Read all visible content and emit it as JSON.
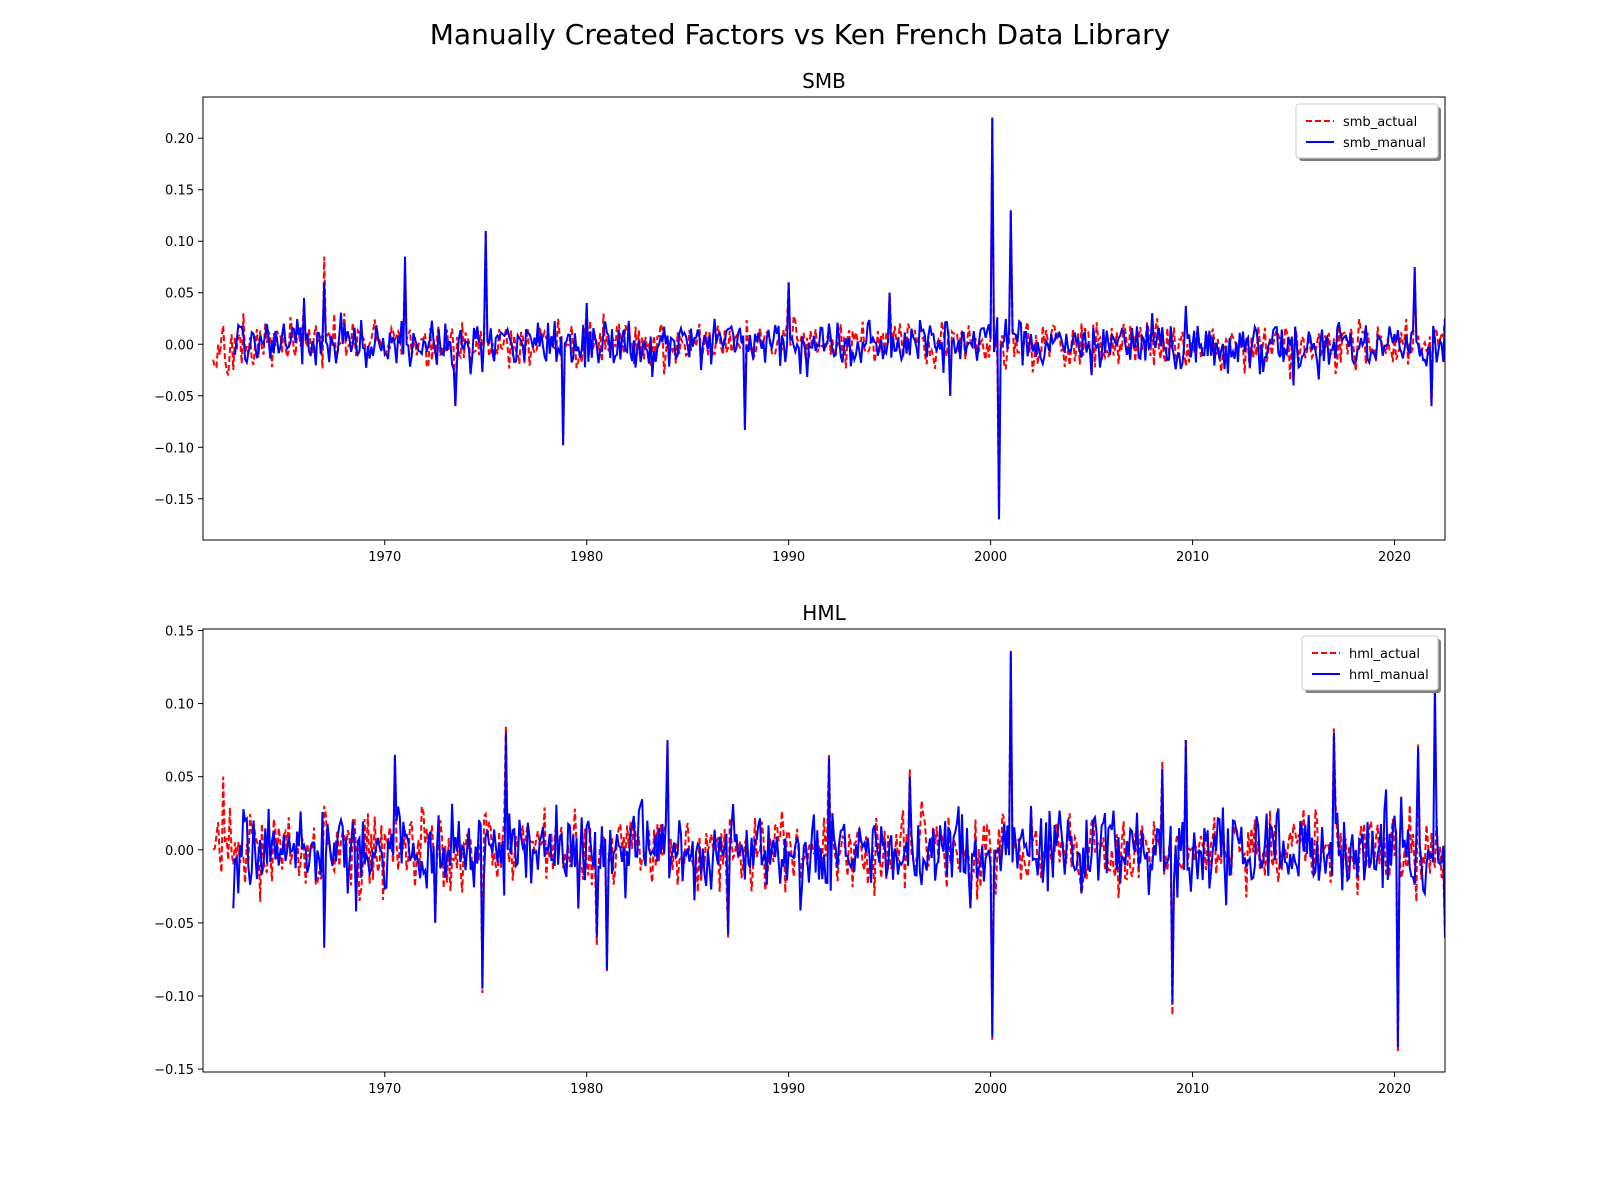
{
  "title": "Manually Created Factors vs Ken French Data Library",
  "colors": {
    "actual": "#ff0000",
    "manual": "#0000ff"
  },
  "chart_data": [
    {
      "type": "line",
      "title": "SMB",
      "xlim": [
        1961.0,
        2022.5
      ],
      "ylim": [
        -0.19,
        0.24
      ],
      "xticks": [
        1970,
        1980,
        1990,
        2000,
        2010,
        2020
      ],
      "yticks": [
        -0.15,
        -0.1,
        -0.05,
        0.0,
        0.05,
        0.1,
        0.15,
        0.2
      ],
      "ytick_labels": [
        "−0.15",
        "−0.10",
        "−0.05",
        "0.00",
        "0.05",
        "0.10",
        "0.15",
        "0.20"
      ],
      "legend_position": "upper-right",
      "series": [
        {
          "name": "smb_actual",
          "style": "dashed",
          "color": "#ff0000",
          "x": [
            1961.5,
            1962.0,
            1962.5,
            1963.0,
            1963.5,
            1964.0,
            1965.0,
            1966.0,
            1967.0,
            1968.0,
            1970.0,
            1971.0,
            1973.5,
            1975.0,
            1978.8,
            1980.0,
            1987.8,
            1990.0,
            1992.0,
            1995.0,
            1998.0,
            2000.1,
            2000.4,
            2001.0,
            2003.0,
            2005.0,
            2008.0,
            2010.0,
            2015.0,
            2020.0,
            2021.0,
            2021.8,
            2022.5
          ],
          "y": [
            -0.015,
            0.018,
            -0.025,
            0.03,
            -0.02,
            -0.01,
            0.02,
            0.04,
            0.085,
            0.03,
            -0.01,
            0.07,
            -0.06,
            0.11,
            -0.098,
            0.04,
            -0.083,
            0.06,
            0.02,
            0.05,
            -0.05,
            0.22,
            -0.17,
            0.13,
            0.01,
            -0.03,
            0.03,
            0.0,
            -0.04,
            0.01,
            0.07,
            -0.06,
            0.025
          ]
        },
        {
          "name": "smb_manual",
          "style": "solid",
          "color": "#0000ff",
          "x": [
            1962.5,
            1963.0,
            1964.0,
            1965.0,
            1966.0,
            1967.0,
            1968.0,
            1970.0,
            1971.0,
            1973.5,
            1975.0,
            1978.8,
            1980.0,
            1987.8,
            1990.0,
            1992.0,
            1995.0,
            1998.0,
            2000.1,
            2000.4,
            2001.0,
            2003.0,
            2005.0,
            2008.0,
            2010.0,
            2015.0,
            2020.0,
            2021.0,
            2021.8,
            2022.5
          ],
          "y": [
            -0.01,
            0.01,
            0.0,
            0.02,
            0.045,
            0.06,
            0.02,
            -0.01,
            0.085,
            -0.06,
            0.11,
            -0.098,
            0.04,
            -0.083,
            0.06,
            0.02,
            0.05,
            -0.05,
            0.22,
            -0.17,
            0.13,
            0.01,
            -0.03,
            0.03,
            0.0,
            -0.04,
            0.01,
            0.075,
            -0.06,
            0.025
          ]
        }
      ]
    },
    {
      "type": "line",
      "title": "HML",
      "xlim": [
        1961.0,
        2022.5
      ],
      "ylim": [
        -0.152,
        0.151
      ],
      "xticks": [
        1970,
        1980,
        1990,
        2000,
        2010,
        2020
      ],
      "yticks": [
        -0.15,
        -0.1,
        -0.05,
        0.0,
        0.05,
        0.1,
        0.15
      ],
      "ytick_labels": [
        "−0.15",
        "−0.10",
        "−0.05",
        "0.00",
        "0.05",
        "0.10",
        "0.15"
      ],
      "legend_position": "upper-right",
      "series": [
        {
          "name": "hml_actual",
          "style": "dashed",
          "color": "#ff0000",
          "x": [
            1961.5,
            1962.0,
            1962.5,
            1963.5,
            1965.0,
            1967.0,
            1970.5,
            1972.5,
            1974.8,
            1976.0,
            1980.5,
            1981.0,
            1984.0,
            1987.0,
            1992.0,
            1996.0,
            1999.0,
            2000.1,
            2001.0,
            2002.0,
            2004.5,
            2008.5,
            2009.0,
            2009.7,
            2012.0,
            2017.0,
            2020.2,
            2021.2,
            2022.5
          ],
          "y": [
            0.0,
            0.05,
            -0.01,
            0.02,
            0.01,
            0.03,
            0.065,
            -0.05,
            -0.098,
            0.085,
            -0.065,
            -0.083,
            0.075,
            -0.06,
            0.065,
            0.055,
            -0.04,
            -0.13,
            0.135,
            0.03,
            -0.03,
            0.06,
            -0.113,
            0.075,
            0.02,
            0.083,
            -0.138,
            0.072,
            -0.06
          ]
        },
        {
          "name": "hml_manual",
          "style": "solid",
          "color": "#0000ff",
          "x": [
            1962.5,
            1963.5,
            1965.0,
            1967.0,
            1970.5,
            1972.5,
            1974.8,
            1976.0,
            1980.5,
            1981.0,
            1984.0,
            1987.0,
            1992.0,
            1996.0,
            1999.0,
            2000.1,
            2001.0,
            2002.0,
            2004.5,
            2008.5,
            2009.0,
            2009.7,
            2012.0,
            2017.0,
            2020.2,
            2021.2,
            2022.0,
            2022.5
          ],
          "y": [
            -0.04,
            0.02,
            0.01,
            -0.067,
            0.065,
            -0.05,
            -0.095,
            0.08,
            -0.06,
            -0.082,
            0.075,
            -0.058,
            0.063,
            0.05,
            -0.04,
            -0.128,
            0.136,
            0.03,
            -0.03,
            0.055,
            -0.105,
            0.075,
            0.02,
            0.08,
            -0.135,
            0.07,
            0.115,
            -0.06
          ]
        }
      ]
    }
  ]
}
